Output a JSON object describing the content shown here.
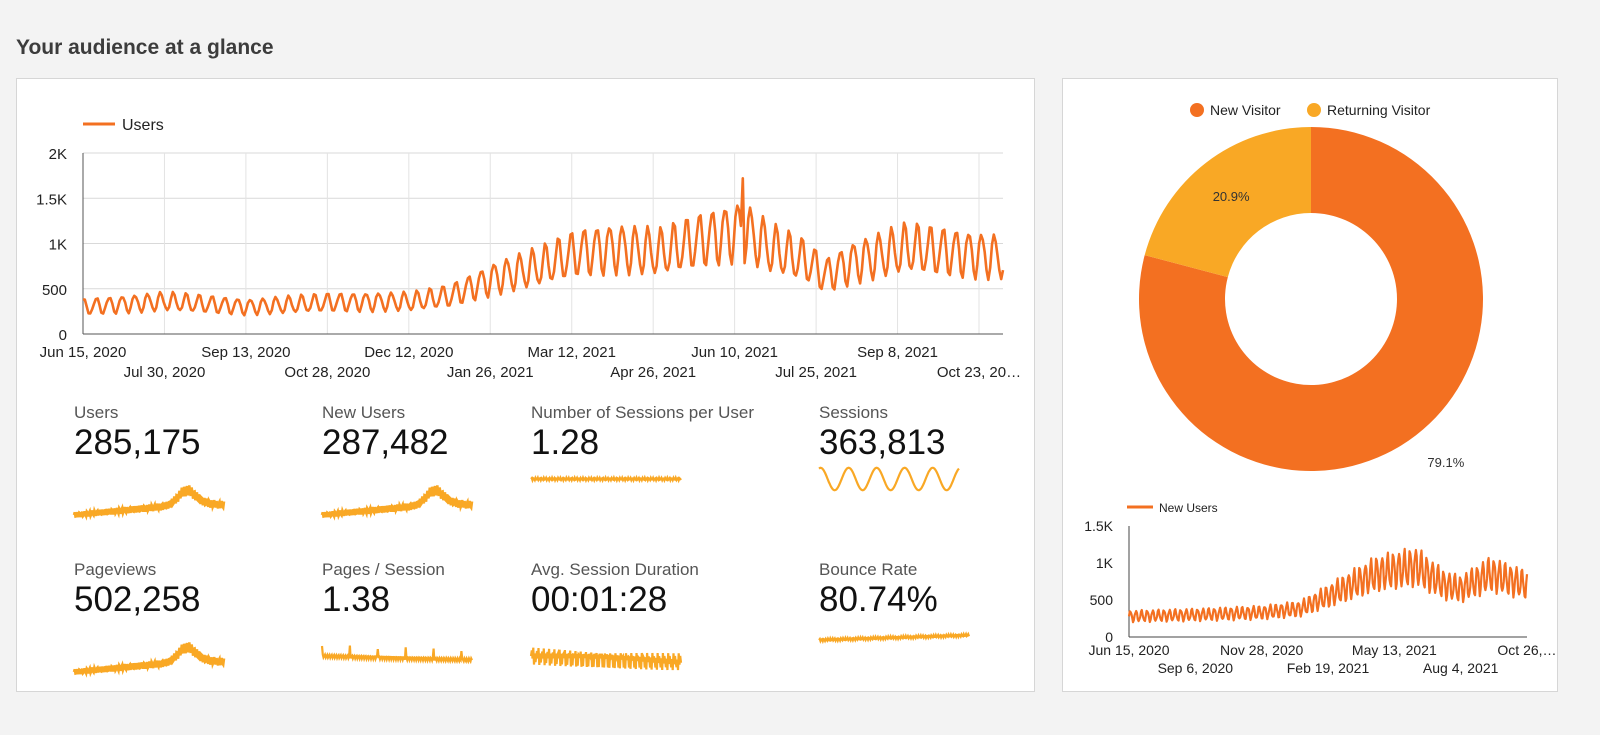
{
  "page": {
    "title": "Your audience at a glance"
  },
  "colors": {
    "primary": "#f37021",
    "sparkline": "#f9a825",
    "returning": "#f9a825",
    "grid": "#d9d9d9"
  },
  "chart_data": [
    {
      "type": "line",
      "title": "",
      "legend": "top-left",
      "series": [
        {
          "name": "Users"
        }
      ],
      "y_ticks": [
        "0",
        "500",
        "1K",
        "1.5K",
        "2K"
      ],
      "ylim": [
        0,
        2000
      ],
      "x_tick_labels": [
        "Jun 15, 2020",
        "Jul 30, 2020",
        "Sep 13, 2020",
        "Oct 28, 2020",
        "Dec 12, 2020",
        "Jan 26, 2021",
        "Mar 12, 2021",
        "Apr 26, 2021",
        "Jun 10, 2021",
        "Jul 25, 2021",
        "Sep 8, 2021",
        "Oct 23, 20…"
      ],
      "trend_points": [
        [
          "2020-06-15",
          300
        ],
        [
          "2020-07-30",
          360
        ],
        [
          "2020-09-13",
          300
        ],
        [
          "2020-10-28",
          350
        ],
        [
          "2020-12-12",
          360
        ],
        [
          "2021-01-01",
          420
        ],
        [
          "2021-01-26",
          620
        ],
        [
          "2021-02-20",
          750
        ],
        [
          "2021-03-12",
          900
        ],
        [
          "2021-04-01",
          950
        ],
        [
          "2021-04-26",
          900
        ],
        [
          "2021-05-20",
          1050
        ],
        [
          "2021-06-10",
          1150
        ],
        [
          "2021-06-25",
          950
        ],
        [
          "2021-07-15",
          800
        ],
        [
          "2021-07-25",
          650
        ],
        [
          "2021-08-10",
          800
        ],
        [
          "2021-09-08",
          950
        ],
        [
          "2021-10-05",
          900
        ],
        [
          "2021-10-30",
          850
        ]
      ],
      "peak": [
        "2021-06-10",
        1720
      ]
    },
    {
      "type": "pie",
      "donut": true,
      "legend": "top",
      "slices": [
        {
          "name": "New Visitor",
          "value": 79.1,
          "label": "79.1%",
          "color": "#f37021"
        },
        {
          "name": "Returning Visitor",
          "value": 20.9,
          "label": "20.9%",
          "color": "#f9a825"
        }
      ]
    },
    {
      "type": "line",
      "legend": "top-left",
      "series": [
        {
          "name": "New Users"
        }
      ],
      "y_ticks": [
        "0",
        "500",
        "1K",
        "1.5K"
      ],
      "ylim": [
        0,
        1500
      ],
      "x_tick_labels": [
        "Jun 15, 2020",
        "Sep 6, 2020",
        "Nov 28, 2020",
        "Feb 19, 2021",
        "May 13, 2021",
        "Aug 4, 2021",
        "Oct 26,…"
      ],
      "trend_points": [
        [
          "2020-06-15",
          280
        ],
        [
          "2020-09-06",
          300
        ],
        [
          "2020-11-28",
          330
        ],
        [
          "2021-01-15",
          380
        ],
        [
          "2021-02-19",
          550
        ],
        [
          "2021-03-20",
          700
        ],
        [
          "2021-04-20",
          850
        ],
        [
          "2021-05-13",
          900
        ],
        [
          "2021-06-10",
          950
        ],
        [
          "2021-07-15",
          700
        ],
        [
          "2021-08-04",
          650
        ],
        [
          "2021-09-10",
          850
        ],
        [
          "2021-10-26",
          700
        ]
      ]
    }
  ],
  "metrics": [
    {
      "label": "Users",
      "value": "285,175",
      "spark": "growth"
    },
    {
      "label": "New Users",
      "value": "287,482",
      "spark": "growth"
    },
    {
      "label": "Number of Sessions per User",
      "value": "1.28",
      "spark": "flat"
    },
    {
      "label": "Sessions",
      "value": "363,813",
      "spark": "wave"
    },
    {
      "label": "Pageviews",
      "value": "502,258",
      "spark": "growth"
    },
    {
      "label": "Pages / Session",
      "value": "1.38",
      "spark": "flat-down"
    },
    {
      "label": "Avg. Session Duration",
      "value": "00:01:28",
      "spark": "noisy"
    },
    {
      "label": "Bounce Rate",
      "value": "80.74%",
      "spark": "flat-up"
    }
  ]
}
